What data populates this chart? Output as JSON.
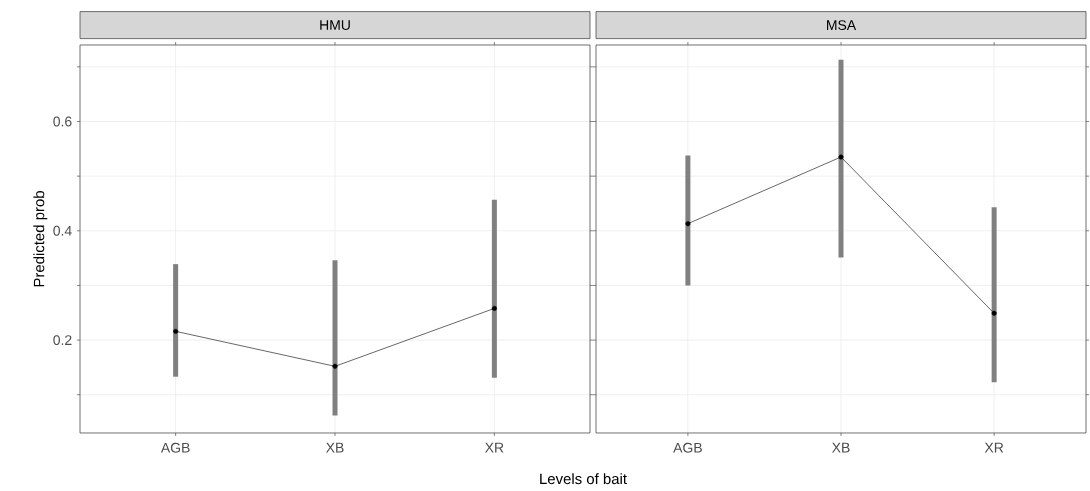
{
  "chart_data": [
    {
      "type": "line",
      "title": "HMU",
      "ylabel": "Predicted prob",
      "xlabel": "Levels of bait",
      "categories": [
        "AGB",
        "XB",
        "XR"
      ],
      "ylim": [
        0.03,
        0.74
      ],
      "yticks": [
        {
          "value": 0.1,
          "label": null
        },
        0.2,
        {
          "value": 0.3,
          "label": null
        },
        0.4,
        {
          "value": 0.5,
          "label": null
        },
        0.6,
        {
          "value": 0.7,
          "label": null
        }
      ],
      "grid": true,
      "marker": "circle",
      "line_style": "solid",
      "series": [
        {
          "color": "#000000",
          "values": [
            0.216,
            0.152,
            0.258
          ],
          "errors": [
            [
              0.133,
              0.339
            ],
            [
              0.062,
              0.346
            ],
            [
              0.131,
              0.457
            ]
          ]
        }
      ]
    },
    {
      "type": "line",
      "title": "MSA",
      "categories": [
        "AGB",
        "XB",
        "XR"
      ],
      "ylim": [
        0.03,
        0.74
      ],
      "yticks": [
        {
          "value": 0.1,
          "label": null
        },
        0.2,
        {
          "value": 0.3,
          "label": null
        },
        0.4,
        {
          "value": 0.5,
          "label": null
        },
        0.6,
        {
          "value": 0.7,
          "label": null
        }
      ],
      "grid": true,
      "marker": "circle",
      "line_style": "solid",
      "tick_labels": "x",
      "series": [
        {
          "color": "#000000",
          "values": [
            0.413,
            0.535,
            0.249
          ],
          "errors": [
            [
              0.3,
              0.538
            ],
            [
              0.351,
              0.713
            ],
            [
              0.123,
              0.443
            ]
          ]
        }
      ]
    }
  ]
}
